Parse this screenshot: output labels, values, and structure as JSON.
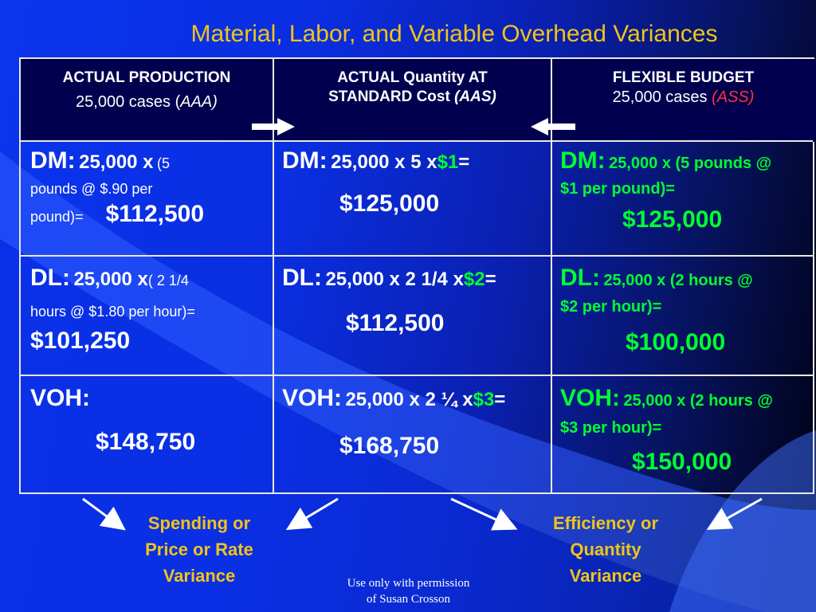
{
  "title": "Material, Labor, and Variable Overhead Variances",
  "columns": [
    {
      "line1": "ACTUAL PRODUCTION",
      "line2_prefix": "25,000 cases (",
      "line2_code": "AAA)",
      "line2_suffix": ""
    },
    {
      "line1": "ACTUAL  Quantity  AT",
      "line2_prefix": "STANDARD Cost ",
      "line2_code": "(AAS)",
      "line2_suffix": ""
    },
    {
      "line1": "FLEXIBLE BUDGET",
      "line2_prefix": "25,000 cases ",
      "line2_code": "(ASS)",
      "line2_suffix": ""
    }
  ],
  "rows": {
    "dm": {
      "actual": {
        "label": "DM:",
        "calc_a": "25,000 x",
        "calc_b": "(5",
        "calc_c": "pounds @ $.90 per",
        "calc_d": "pound)=",
        "total": "$112,500"
      },
      "aqsc": {
        "label": "DM:",
        "calc_a": "25,000 x 5 x",
        "rate": "$1",
        "eq": "=",
        "total": "$125,000"
      },
      "flex": {
        "label": "DM:",
        "calc_a": "25,000 x (5 pounds @",
        "calc_b": "$1 per pound)=",
        "total": "$125,000"
      }
    },
    "dl": {
      "actual": {
        "label": "DL:",
        "calc_a": "25,000 x",
        "calc_b": "( 2 1/4",
        "calc_c": "hours @ $1.80 per hour)=",
        "total": "$101,250"
      },
      "aqsc": {
        "label": "DL:",
        "calc_a": "25,000 x 2 1/4 x",
        "rate": "$2",
        "eq": "=",
        "total": "$112,500"
      },
      "flex": {
        "label": "DL:",
        "calc_a": "25,000 x (2 hours @",
        "calc_b": "$2 per hour)=",
        "total": "$100,000"
      }
    },
    "voh": {
      "actual": {
        "label": "VOH:",
        "total": "$148,750"
      },
      "aqsc": {
        "label": "VOH:",
        "calc_a": "25,000 x 2 ¼ x",
        "rate": "$3",
        "eq": "=",
        "total": "$168,750"
      },
      "flex": {
        "label": "VOH:",
        "calc_a": "25,000 x (2 hours @",
        "calc_b": "$3 per hour)=",
        "total": "$150,000"
      }
    }
  },
  "variance_labels": {
    "spending": [
      "Spending or",
      "Price or Rate",
      "Variance"
    ],
    "efficiency": [
      "Efficiency or",
      "Quantity",
      "Variance"
    ]
  },
  "footnote": [
    "Use only with permission",
    "of Susan Crosson"
  ],
  "colors": {
    "title": "#f0c419",
    "green": "#00ff33",
    "header_bg": "#00004e"
  }
}
